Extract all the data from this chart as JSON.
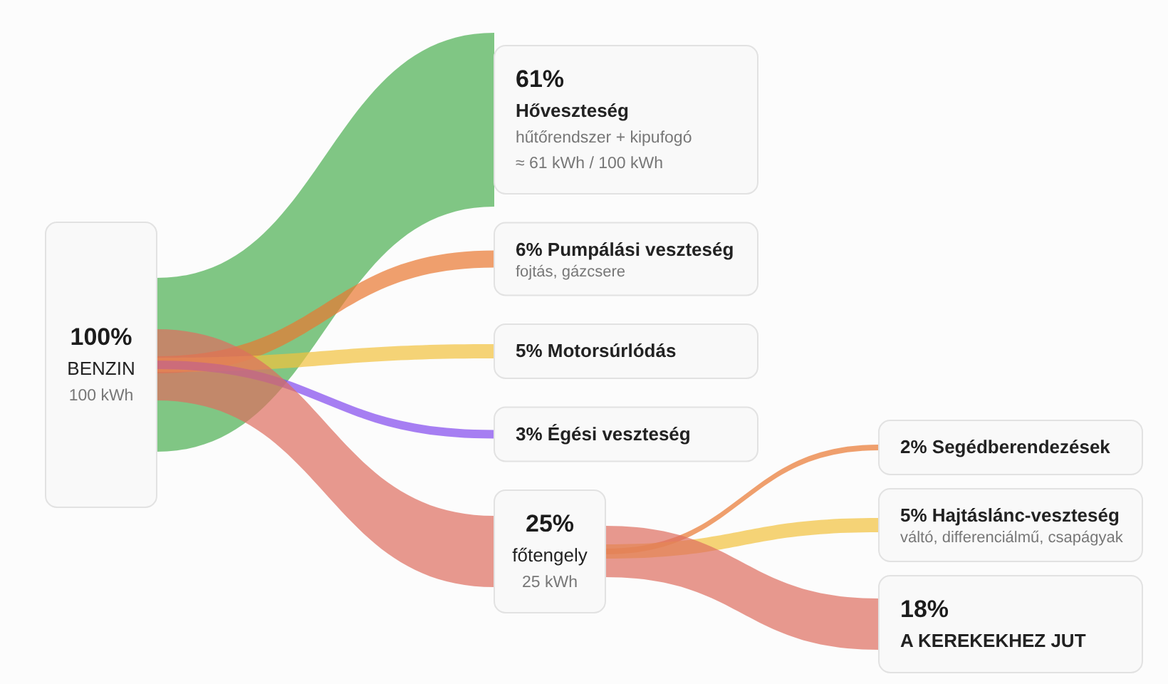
{
  "chart_data": {
    "type": "other",
    "categories": [
      "BENZIN",
      "Hőveszteség",
      "Pumpálási veszteség",
      "Motorsúrlódás",
      "Égési veszteség",
      "főtengely",
      "Segédberendezések",
      "Hajtáslánc-veszteség",
      "A KEREKEKHEZ JUT"
    ],
    "values": [
      100,
      61,
      6,
      5,
      3,
      25,
      2,
      5,
      18
    ],
    "value_labels": [
      "100%",
      "61%",
      "6%",
      "5%",
      "3%",
      "25%",
      "2%",
      "5%",
      "18%"
    ],
    "annotations": [
      {
        "text": "100 kWh",
        "x": "BENZIN"
      },
      {
        "text": "hűtőrendszer + kipufogó",
        "x": "Hőveszteség"
      },
      {
        "text": "≈ 61 kWh / 100 kWh",
        "x": "Hőveszteség"
      },
      {
        "text": "fojtás, gázcsere",
        "x": "Pumpálási veszteség"
      },
      {
        "text": "25 kWh",
        "x": "főtengely"
      },
      {
        "text": "váltó, differenciálmű, csapágyak",
        "x": "Hajtáslánc-veszteség"
      }
    ]
  }
}
